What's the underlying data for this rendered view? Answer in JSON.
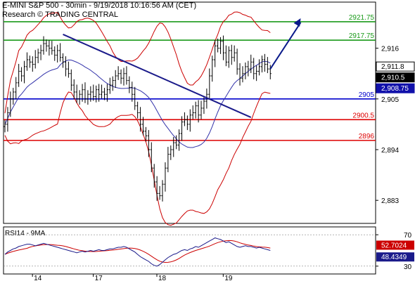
{
  "header": {
    "line1": "E-MINI S&P 500 - 30min - 9/19/2018 10:16:56 AM (CET)",
    "line2": "Research © TRADING CENTRAL"
  },
  "colors": {
    "resistance": "#1a9a1a",
    "pivot": "#0000cc",
    "support": "#dd0000",
    "bollinger": "#cc0000",
    "moving_average": "#3333aa",
    "trendline": "#1a1a8a",
    "projection_arrow": "#0a1a8a",
    "price_bars": "#000000",
    "rsi": "#1a1a8a",
    "rsi_ma": "#cc0000",
    "last_price_box": "#000000",
    "ma_box": "#1010aa",
    "rsi_box": "#cc0000",
    "rsi_ma_box": "#1a1a8a"
  },
  "chart_data": [
    {
      "type": "candlestick",
      "title": "E-MINI S&P 500 - 30min",
      "x": [
        "14",
        "17",
        "18",
        "19"
      ],
      "y_ticks": [
        2883,
        2894,
        2905,
        2916
      ],
      "ylim": [
        2878,
        2926
      ],
      "levels": [
        {
          "label": "2921.75",
          "value": 2921.75,
          "role": "resistance"
        },
        {
          "label": "2917.75",
          "value": 2917.75,
          "role": "resistance"
        },
        {
          "label": "2905",
          "value": 2905,
          "role": "pivot"
        },
        {
          "label": "2900.5",
          "value": 2900.5,
          "role": "support"
        },
        {
          "label": "2896",
          "value": 2896,
          "role": "support"
        }
      ],
      "tags": [
        {
          "label": "2,911.8",
          "value": 2911.8,
          "role": "last_price_box"
        },
        {
          "label": "2,910.5",
          "value": 2910.5,
          "role": "last_price_box"
        },
        {
          "label": "2,908.75",
          "value": 2908.75,
          "role": "ma_box"
        }
      ],
      "closes": [
        2899.5,
        2902,
        2905,
        2906.5,
        2908.5,
        2911,
        2910,
        2912,
        2913.5,
        2913,
        2912.5,
        2914,
        2915,
        2915.5,
        2917,
        2916.5,
        2916,
        2915.5,
        2914.5,
        2915.5,
        2914,
        2913,
        2911.5,
        2910.5,
        2908,
        2906.5,
        2905,
        2906,
        2907,
        2905,
        2906,
        2906.5,
        2905.5,
        2907,
        2906,
        2906.5,
        2906,
        2907,
        2908,
        2909,
        2910,
        2910.5,
        2909.5,
        2910.5,
        2909,
        2907.5,
        2906,
        2903.5,
        2902,
        2899.5,
        2898,
        2897,
        2894,
        2890,
        2887,
        2884.5,
        2884,
        2886.5,
        2890,
        2893,
        2894,
        2895.5,
        2895,
        2897.5,
        2900,
        2900.5,
        2899.5,
        2901.5,
        2902,
        2903.5,
        2901.5,
        2903,
        2904.5,
        2906,
        2910,
        2913.5,
        2916.5,
        2916,
        2917.5,
        2915,
        2913,
        2915.5,
        2914,
        2915,
        2911.5,
        2909.5,
        2910.5,
        2912,
        2911.5,
        2913,
        2910.5,
        2911,
        2912,
        2913.5,
        2912.5,
        2911.5,
        2910.5
      ],
      "trendline": {
        "from": {
          "bar": 21,
          "value": 2919
        },
        "to": {
          "bar": 89,
          "value": 2901
        }
      },
      "projection": {
        "from": {
          "bar": 96,
          "value": 2911.5
        },
        "to": {
          "bar": 107,
          "value": 2922.5
        }
      },
      "x_tick_bars": [
        12,
        34,
        57,
        81
      ],
      "rsi": {
        "title": "RSI14 - 9MA",
        "y_ticks": [
          30,
          70
        ],
        "ylim": [
          20,
          80
        ],
        "labels": [
          {
            "label": "52.7024",
            "value": 52.7024,
            "role": "rsi_box"
          },
          {
            "label": "48.4349",
            "value": 48.4349,
            "role": "rsi_ma_box"
          }
        ],
        "values": [
          45,
          48,
          50,
          52,
          53,
          55,
          56,
          57,
          58,
          58,
          57,
          56,
          57,
          58,
          59,
          58,
          57,
          56,
          55,
          54,
          53,
          52,
          51,
          50,
          49,
          48,
          47,
          48,
          49,
          48,
          49,
          50,
          49,
          50,
          51,
          50,
          50,
          51,
          52,
          52,
          53,
          54,
          54,
          55,
          54,
          52,
          50,
          48,
          45,
          42,
          40,
          38,
          36,
          33,
          31,
          30,
          32,
          35,
          38,
          41,
          43,
          45,
          46,
          48,
          50,
          51,
          50,
          52,
          53,
          55,
          54,
          56,
          58,
          60,
          62,
          64,
          66,
          65,
          64,
          62,
          60,
          61,
          59,
          57,
          55,
          54,
          55,
          56,
          55,
          55,
          54,
          53,
          54,
          53,
          52,
          51,
          50
        ]
      }
    }
  ]
}
